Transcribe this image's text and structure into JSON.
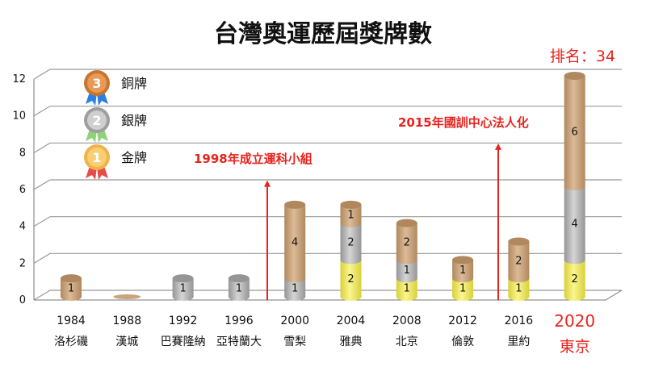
{
  "chart_data": {
    "type": "bar",
    "stacked": true,
    "style": "3d-cylinder",
    "title": "台灣奧運歷屆獎牌數",
    "rank_label": "排名：34",
    "categories": [
      "1984",
      "1988",
      "1992",
      "1996",
      "2000",
      "2004",
      "2008",
      "2012",
      "2016",
      "2020"
    ],
    "category_cities": [
      "洛杉磯",
      "漢城",
      "巴賽隆納",
      "亞特蘭大",
      "雪梨",
      "雅典",
      "北京",
      "倫敦",
      "里約",
      "東京"
    ],
    "highlight_category": "2020",
    "series": [
      {
        "name": "金牌",
        "color": "#f3ec5c",
        "values": [
          0,
          0,
          0,
          0,
          0,
          2,
          1,
          1,
          1,
          2
        ]
      },
      {
        "name": "銀牌",
        "color": "#b5b5b5",
        "values": [
          0,
          0,
          1,
          1,
          1,
          2,
          1,
          0,
          0,
          4
        ]
      },
      {
        "name": "銅牌",
        "color": "#c9a37b",
        "values": [
          1,
          0,
          0,
          0,
          4,
          1,
          2,
          1,
          2,
          6
        ]
      }
    ],
    "ylim": [
      0,
      12
    ],
    "yticks": [
      0,
      2,
      4,
      6,
      8,
      10,
      12
    ],
    "grid": true,
    "legend_placement": "top-left",
    "legend_icons": [
      "bronze-medal-3",
      "silver-medal-2",
      "gold-medal-1"
    ],
    "annotations": [
      {
        "text": "1998年成立運科小組",
        "between": [
          "1996",
          "2000"
        ],
        "arrow_to": 6.5
      },
      {
        "text": "2015年國訓中心法人化",
        "between": [
          "2012",
          "2016"
        ],
        "arrow_to": 8.5
      }
    ],
    "accent_color": "#e8231e"
  }
}
